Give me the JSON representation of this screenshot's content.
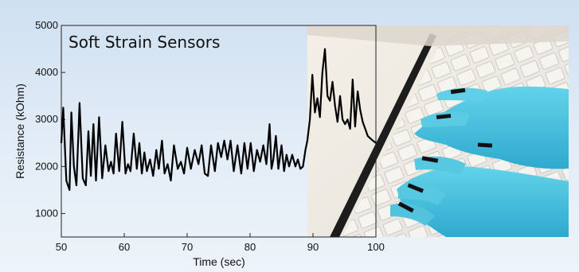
{
  "chart_data": {
    "type": "line",
    "title": "Soft Strain Sensors",
    "xlabel": "Time (sec)",
    "ylabel": "Resistance (kOhm)",
    "xlim": [
      50,
      100
    ],
    "ylim": [
      500,
      5000
    ],
    "x_ticks": [
      "50",
      "60",
      "70",
      "80",
      "90",
      "100"
    ],
    "y_ticks": [
      "1000",
      "2000",
      "3000",
      "4000",
      "5000"
    ],
    "line_color": "#000000",
    "grid": false,
    "background_photo": "hands-typing-on-keyboard",
    "series": [
      {
        "x": [
          50,
          50.3,
          50.8,
          51.3,
          51.6,
          52.0,
          52.4,
          52.9,
          53.4,
          53.9,
          54.3,
          54.7,
          55.1,
          55.5,
          56.0,
          56.5,
          57.0,
          57.5,
          57.9,
          58.3,
          58.7,
          59.2,
          59.7,
          60.2,
          60.6,
          61.0,
          61.5,
          62.0,
          62.4,
          62.8,
          63.2,
          63.6,
          64.1,
          64.6,
          65.1,
          65.5,
          66.0,
          66.4,
          66.9,
          67.4,
          67.9,
          68.5,
          69.0,
          69.5,
          70.0,
          70.6,
          71.2,
          71.8,
          72.3,
          72.8,
          73.3,
          73.8,
          74.4,
          74.9,
          75.4,
          75.9,
          76.4,
          76.9,
          77.4,
          78.0,
          78.6,
          79.1,
          79.6,
          80.1,
          80.6,
          81.1,
          81.6,
          82.1,
          82.6,
          83.1,
          83.4,
          83.7,
          84.1,
          84.5,
          85.0,
          85.4,
          85.8,
          86.2,
          86.7,
          87.2,
          87.6,
          88.0,
          88.4,
          88.8,
          89.1,
          89.5,
          89.9,
          90.3,
          90.7,
          91.1,
          91.5,
          91.9,
          92.3,
          92.7,
          93.1,
          93.5,
          93.9,
          94.3,
          94.7,
          95.1,
          95.5,
          95.9,
          96.3,
          96.7,
          97.1,
          97.5,
          97.9,
          98.3,
          98.7,
          99.1,
          99.5,
          100.0
        ],
        "y": [
          2500,
          3250,
          1700,
          1500,
          3150,
          2000,
          1600,
          3350,
          1750,
          1600,
          2750,
          1800,
          2900,
          1700,
          3050,
          1750,
          2450,
          1900,
          2100,
          1850,
          2700,
          1900,
          2950,
          1850,
          2050,
          1900,
          2700,
          1950,
          2500,
          1850,
          2300,
          1900,
          2150,
          1800,
          2350,
          1950,
          2550,
          1850,
          2050,
          1700,
          2450,
          1950,
          2100,
          1850,
          2400,
          1950,
          2350,
          2050,
          2450,
          1850,
          1800,
          2450,
          1900,
          2500,
          2200,
          2550,
          2150,
          2550,
          1900,
          2450,
          1850,
          2500,
          1950,
          2500,
          1900,
          2350,
          2100,
          2450,
          2050,
          2900,
          1950,
          2150,
          2650,
          1950,
          2450,
          1900,
          2250,
          2000,
          2250,
          2000,
          2150,
          1950,
          2000,
          2350,
          2550,
          3000,
          3950,
          3150,
          3450,
          3050,
          4000,
          4500,
          3500,
          3400,
          3800,
          3300,
          2950,
          3500,
          3000,
          2900,
          3000,
          2800,
          3850,
          2850,
          3600,
          3200,
          2950,
          2800,
          2650,
          2600,
          2550,
          2500
        ]
      }
    ]
  }
}
